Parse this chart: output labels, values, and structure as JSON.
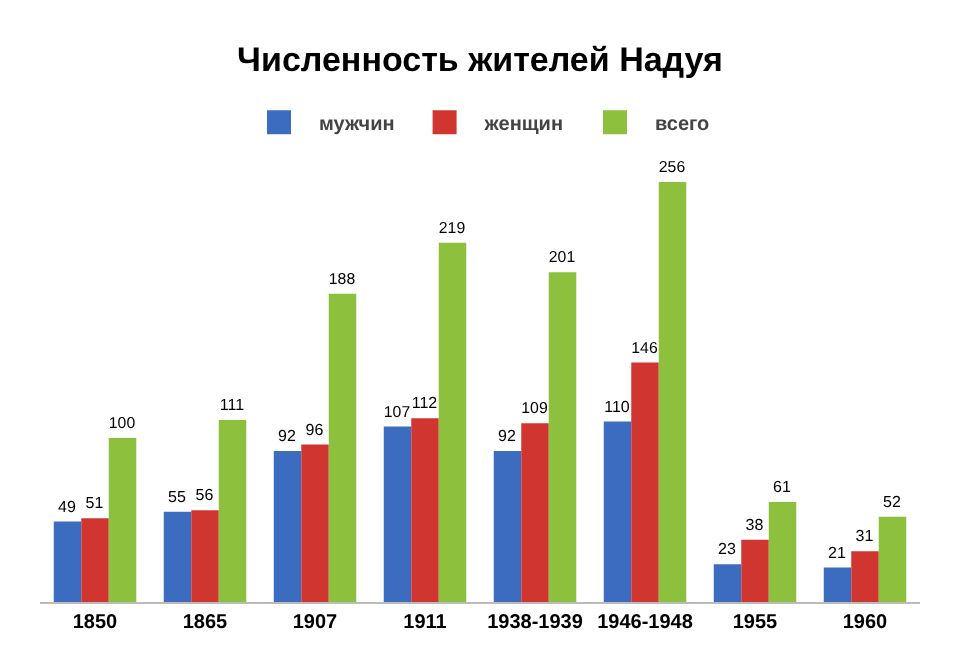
{
  "chart_data": {
    "type": "bar",
    "title": "Численность жителей Надуя",
    "categories": [
      "1850",
      "1865",
      "1907",
      "1911",
      "1938-1939",
      "1946-1948",
      "1955",
      "1960"
    ],
    "series": [
      {
        "name": "мужчин",
        "color": "#3b6cc0",
        "values": [
          49,
          55,
          92,
          107,
          92,
          110,
          23,
          21
        ]
      },
      {
        "name": "женщин",
        "color": "#d0352f",
        "values": [
          51,
          56,
          96,
          112,
          109,
          146,
          38,
          31
        ]
      },
      {
        "name": "всего",
        "color": "#8dc03c",
        "values": [
          100,
          111,
          188,
          219,
          201,
          256,
          61,
          52
        ]
      }
    ],
    "data_labels": true,
    "grid": false,
    "legend": "top"
  }
}
